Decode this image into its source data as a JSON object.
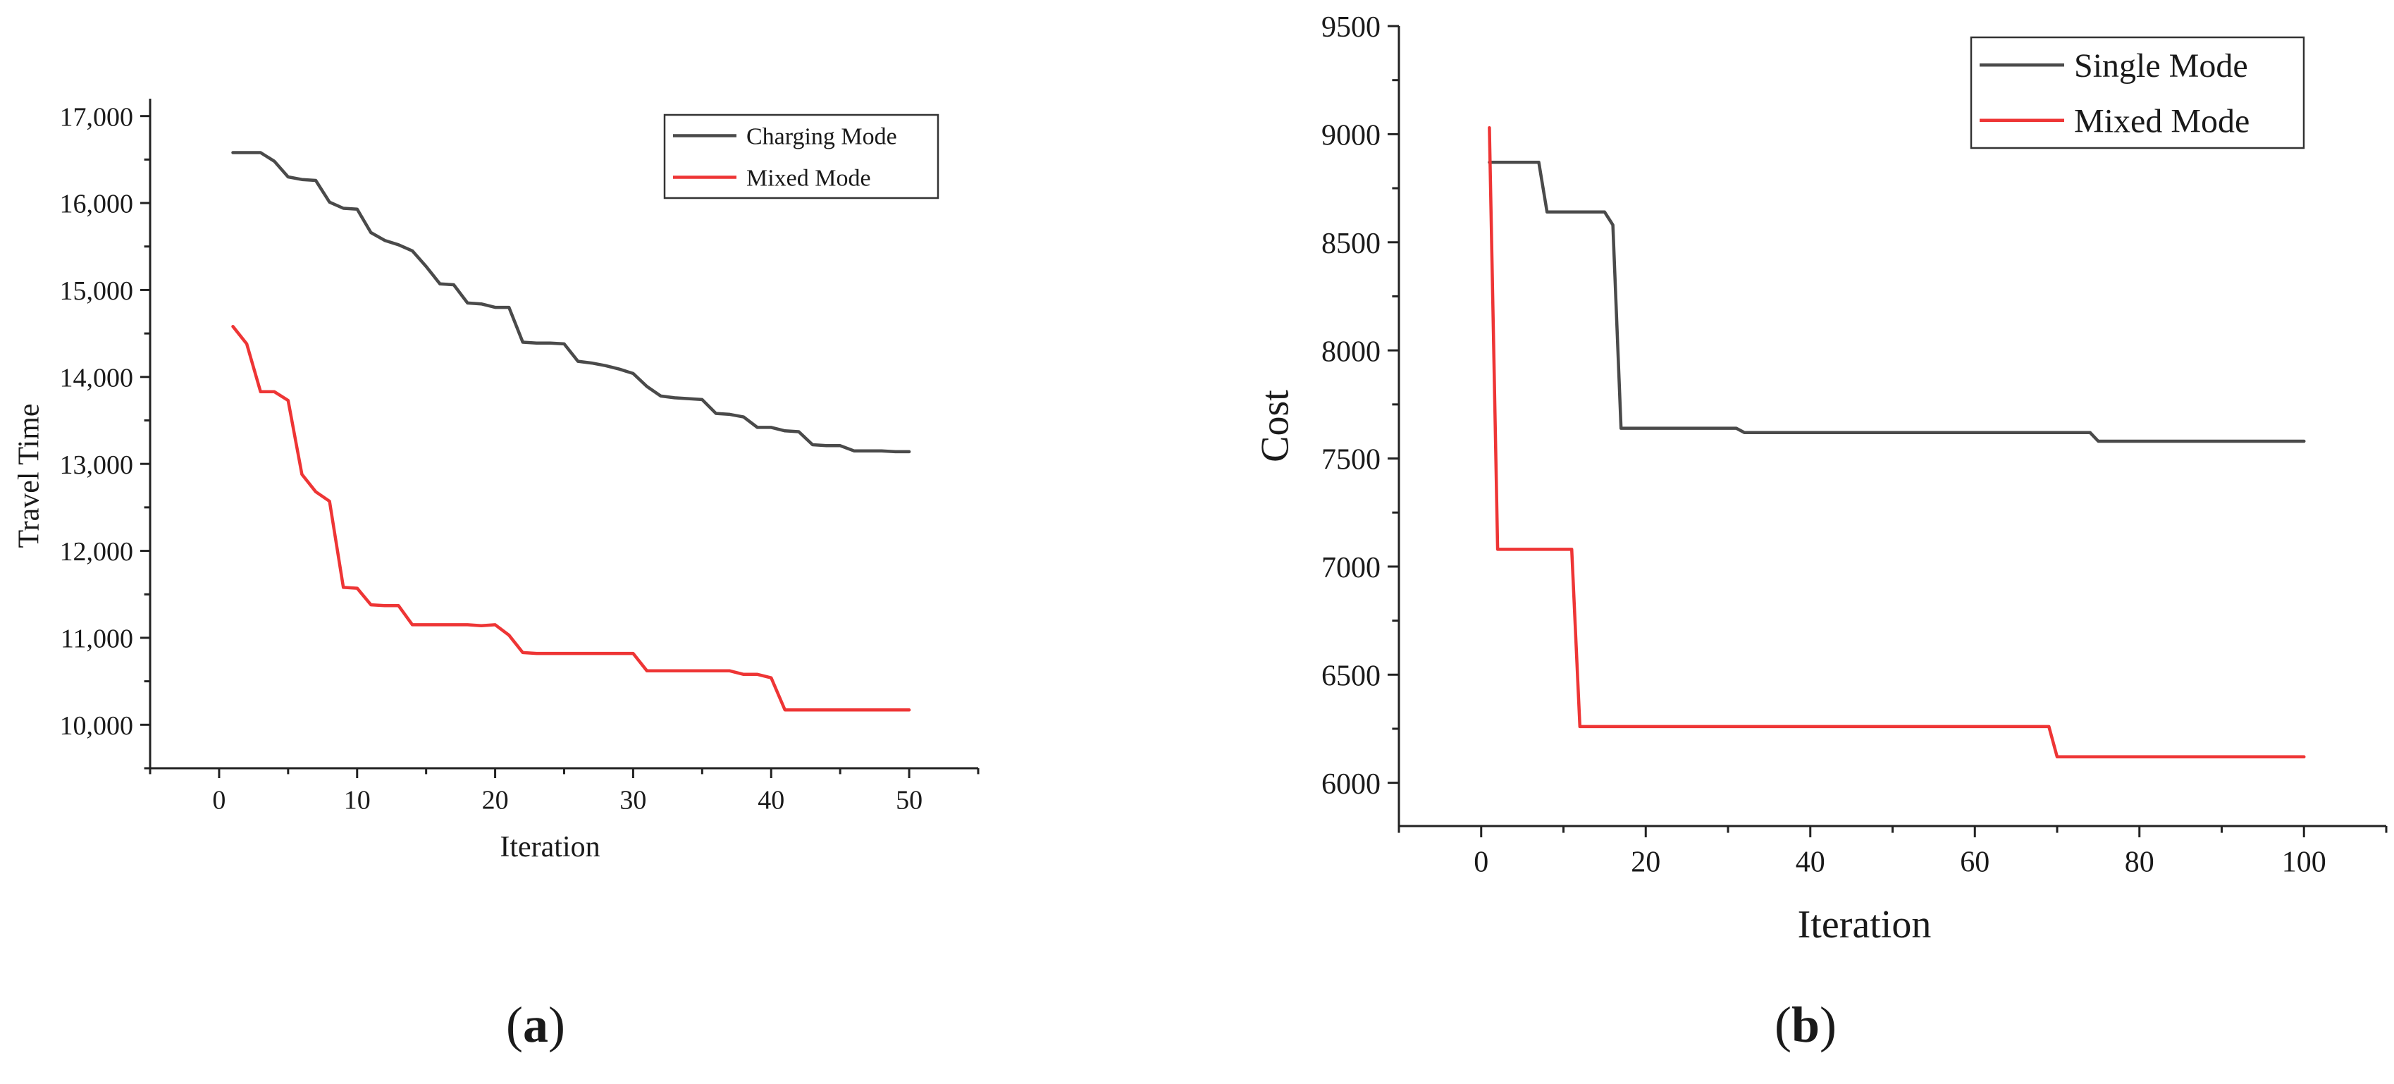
{
  "chart_data": [
    {
      "type": "line",
      "panel_label": "a",
      "title": "",
      "xlabel": "Iteration",
      "ylabel": "Travel Time",
      "xlim": [
        -5,
        55
      ],
      "ylim": [
        9500,
        17200
      ],
      "xticks": [
        0,
        10,
        20,
        30,
        40,
        50
      ],
      "yticks": [
        10000,
        11000,
        12000,
        13000,
        14000,
        15000,
        16000,
        17000
      ],
      "ytick_labels": [
        "10,000",
        "11,000",
        "12,000",
        "13,000",
        "14,000",
        "15,000",
        "16,000",
        "17,000"
      ],
      "grid": false,
      "legend_position": "top-right",
      "series": [
        {
          "name": "Charging Mode",
          "color": "#4a4a4a",
          "x": [
            1,
            2,
            3,
            4,
            5,
            6,
            7,
            8,
            9,
            10,
            11,
            12,
            13,
            14,
            15,
            16,
            17,
            18,
            19,
            20,
            21,
            22,
            23,
            24,
            25,
            26,
            27,
            28,
            29,
            30,
            31,
            32,
            33,
            34,
            35,
            36,
            37,
            38,
            39,
            40,
            41,
            42,
            43,
            44,
            45,
            46,
            47,
            48,
            49,
            50
          ],
          "y": [
            16580,
            16580,
            16580,
            16480,
            16300,
            16270,
            16260,
            16010,
            15940,
            15930,
            15660,
            15570,
            15520,
            15450,
            15270,
            15070,
            15060,
            14850,
            14840,
            14800,
            14800,
            14400,
            14390,
            14390,
            14380,
            14180,
            14160,
            14130,
            14090,
            14040,
            13890,
            13780,
            13760,
            13750,
            13740,
            13580,
            13570,
            13540,
            13420,
            13420,
            13380,
            13370,
            13220,
            13210,
            13210,
            13150,
            13150,
            13150,
            13140,
            13140
          ]
        },
        {
          "name": "Mixed Mode",
          "color": "#ee3535",
          "x": [
            1,
            2,
            3,
            4,
            5,
            6,
            7,
            8,
            9,
            10,
            11,
            12,
            13,
            14,
            15,
            16,
            17,
            18,
            19,
            20,
            21,
            22,
            23,
            24,
            25,
            26,
            27,
            28,
            29,
            30,
            31,
            32,
            33,
            34,
            35,
            36,
            37,
            38,
            39,
            40,
            41,
            42,
            43,
            44,
            45,
            46,
            47,
            48,
            49,
            50
          ],
          "y": [
            14580,
            14380,
            13830,
            13830,
            13730,
            12880,
            12680,
            12570,
            11580,
            11570,
            11380,
            11370,
            11370,
            11150,
            11150,
            11150,
            11150,
            11150,
            11140,
            11150,
            11030,
            10830,
            10820,
            10820,
            10820,
            10820,
            10820,
            10820,
            10820,
            10820,
            10620,
            10620,
            10620,
            10620,
            10620,
            10620,
            10620,
            10580,
            10580,
            10540,
            10170,
            10170,
            10170,
            10170,
            10170,
            10170,
            10170,
            10170,
            10170,
            10170
          ]
        }
      ]
    },
    {
      "type": "line",
      "panel_label": "b",
      "title": "",
      "xlabel": "Iteration",
      "ylabel": "Cost",
      "xlim": [
        -10,
        110
      ],
      "ylim": [
        5800,
        9500
      ],
      "xticks": [
        0,
        20,
        40,
        60,
        80,
        100
      ],
      "yticks": [
        6000,
        6500,
        7000,
        7500,
        8000,
        8500,
        9000,
        9500
      ],
      "ytick_labels": [
        "6000",
        "6500",
        "7000",
        "7500",
        "8000",
        "8500",
        "9000",
        "9500"
      ],
      "grid": false,
      "legend_position": "top-right",
      "series": [
        {
          "name": "Single Mode",
          "color": "#4a4a4a",
          "x": [
            1,
            7,
            8,
            15,
            16,
            17,
            31,
            32,
            74,
            75,
            100
          ],
          "y": [
            8870,
            8870,
            8640,
            8640,
            8580,
            7640,
            7640,
            7620,
            7620,
            7580,
            7580
          ]
        },
        {
          "name": "Mixed Mode",
          "color": "#ee3535",
          "x": [
            1,
            2,
            11,
            12,
            69,
            70,
            100
          ],
          "y": [
            9030,
            7080,
            7080,
            6260,
            6260,
            6120,
            6120
          ]
        }
      ]
    }
  ]
}
